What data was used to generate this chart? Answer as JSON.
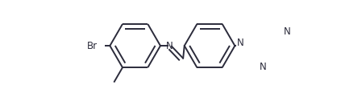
{
  "bg_color": "#ffffff",
  "line_color": "#2b2b3b",
  "lw": 1.4,
  "fs": 8.5,
  "dbo": 0.04,
  "fig_width": 4.23,
  "fig_height": 1.11,
  "dpi": 100,
  "xlim": [
    0.0,
    1.0
  ],
  "ylim": [
    0.0,
    1.0
  ]
}
